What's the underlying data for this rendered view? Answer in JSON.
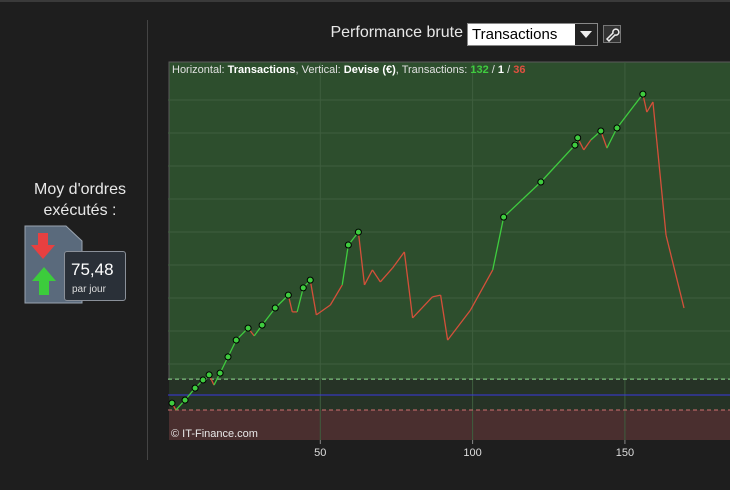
{
  "left_panel": {
    "label": "Moy d'ordres\nexécutés :",
    "value": "75,48",
    "unit": "par jour"
  },
  "header": {
    "title": "Performance brute",
    "dropdown": "Transactions"
  },
  "chart_data": {
    "type": "line",
    "info": {
      "h_label": "Horizontal: ",
      "h_value": "Transactions",
      "v_label": ", Vertical: ",
      "v_value": "Devise (€)",
      "t_label": ", Transactions: ",
      "wins": 132,
      "sep": " / ",
      "neutral": 1,
      "losses": 36
    },
    "watermark": "© IT-Finance.com",
    "x": [
      1.3,
      2.6,
      5.6,
      8.9,
      11.5,
      13.5,
      15.1,
      17.1,
      19.7,
      22.4,
      26.3,
      28.3,
      30.9,
      35.2,
      39.5,
      40.8,
      42.4,
      44.4,
      46.7,
      48.7,
      53.3,
      57.2,
      59.2,
      62.5,
      64.5,
      67.1,
      69.7,
      73.7,
      77.6,
      80.3,
      86.8,
      89.5,
      91.8,
      99.3,
      106.6,
      110.2,
      122.4,
      133.6,
      134.5,
      136.5,
      138.8,
      142.1,
      144.1,
      147.4,
      155.9,
      157.2,
      159.2,
      163.5,
      169.4
    ],
    "series": [
      {
        "color_up": "#3fcc3f",
        "color_down": "#d4503a",
        "values": [
          -2.7,
          -5,
          -1.7,
          2.3,
          5,
          6.7,
          3.3,
          7.3,
          12.7,
          18.3,
          22.3,
          19.7,
          23.3,
          29,
          33.3,
          27.7,
          27.7,
          35.7,
          38.3,
          26.7,
          30,
          36.7,
          50,
          54.3,
          36.7,
          41.7,
          37.7,
          42.3,
          47.7,
          25.7,
          32.7,
          33.3,
          18.3,
          28.3,
          41.7,
          59.3,
          71,
          83.3,
          85.7,
          81.7,
          85,
          88,
          82.3,
          89,
          100.3,
          94.3,
          97.7,
          53.3,
          29
        ]
      }
    ],
    "upper_level": 5.3,
    "zero_level": 0,
    "lower_level": -5,
    "xlim": [
      0,
      184.5
    ],
    "ylim": [
      -15,
      111
    ],
    "xticks": [
      50,
      100,
      150
    ],
    "grid": true
  }
}
